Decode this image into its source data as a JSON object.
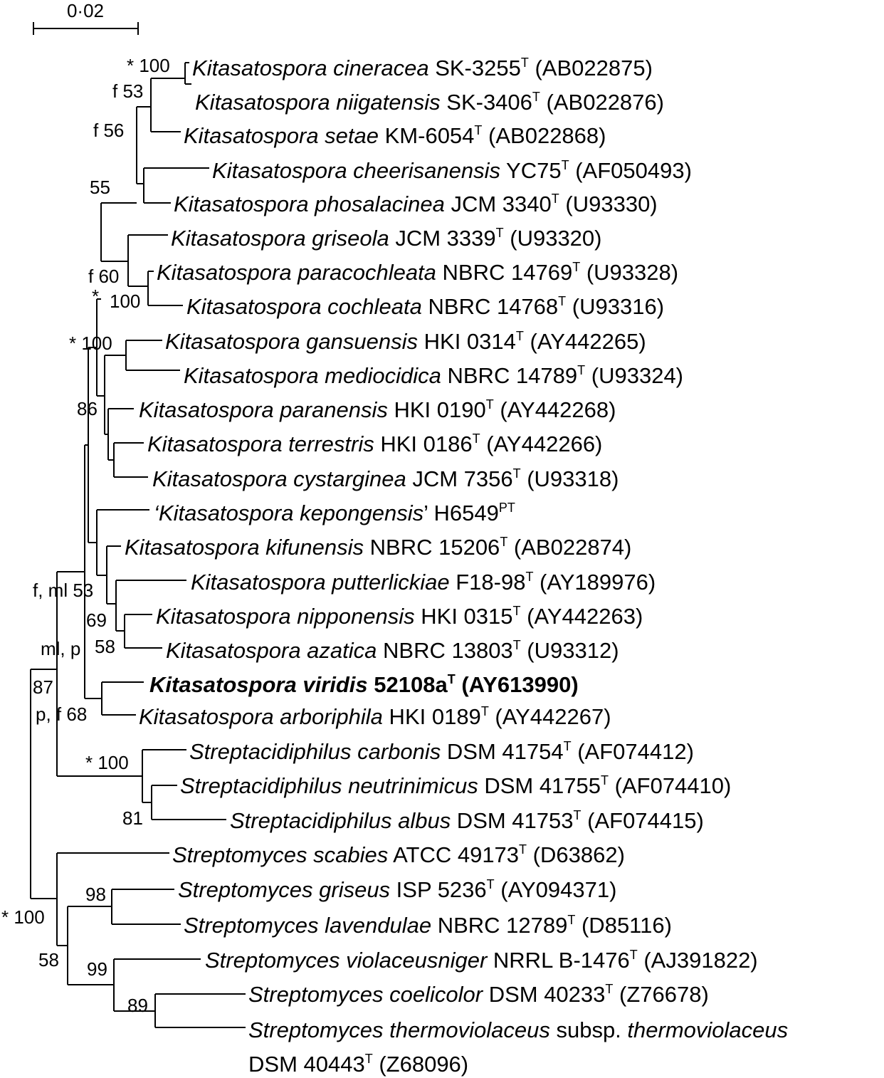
{
  "scale_bar": {
    "label": "0·02"
  },
  "colors": {
    "ink": "#000000",
    "background": "#ffffff"
  },
  "taxa": [
    {
      "id": "t1",
      "genus": "Kitasatospora",
      "species": "cineracea",
      "strain": "SK-3255",
      "sup": "T",
      "acc": "(AB022875)"
    },
    {
      "id": "t2",
      "genus": "Kitasatospora",
      "species": "niigatensis",
      "strain": "SK-3406",
      "sup": "T",
      "acc": "(AB022876)"
    },
    {
      "id": "t3",
      "genus": "Kitasatospora",
      "species": "setae",
      "strain": "KM-6054",
      "sup": "T",
      "acc": "(AB022868)"
    },
    {
      "id": "t4",
      "genus": "Kitasatospora",
      "species": "cheerisanensis",
      "strain": "YC75",
      "sup": "T",
      "acc": "(AF050493)"
    },
    {
      "id": "t5",
      "genus": "Kitasatospora",
      "species": "phosalacinea",
      "strain": "JCM 3340",
      "sup": "T",
      "acc": "(U93330)"
    },
    {
      "id": "t6",
      "genus": "Kitasatospora",
      "species": "griseola",
      "strain": "JCM 3339",
      "sup": "T",
      "acc": "(U93320)"
    },
    {
      "id": "t7",
      "genus": "Kitasatospora",
      "species": "paracochleata",
      "strain": "NBRC 14769",
      "sup": "T",
      "acc": "(U93328)"
    },
    {
      "id": "t8",
      "genus": "Kitasatospora",
      "species": "cochleata",
      "strain": "NBRC 14768",
      "sup": "T",
      "acc": "(U93316)"
    },
    {
      "id": "t9",
      "genus": "Kitasatospora",
      "species": "gansuensis",
      "strain": "HKI 0314",
      "sup": "T",
      "acc": "(AY442265)"
    },
    {
      "id": "t10",
      "genus": "Kitasatospora",
      "species": "mediocidica",
      "strain": "NBRC 14789",
      "sup": "T",
      "acc": "(U93324)"
    },
    {
      "id": "t11",
      "genus": "Kitasatospora",
      "species": "paranensis",
      "strain": "HKI 0190",
      "sup": "T",
      "acc": "(AY442268)"
    },
    {
      "id": "t12",
      "genus": "Kitasatospora",
      "species": "terrestris",
      "strain": "HKI 0186",
      "sup": "T",
      "acc": "(AY442266)"
    },
    {
      "id": "t13",
      "genus": "Kitasatospora",
      "species": "cystarginea",
      "strain": "JCM 7356",
      "sup": "T",
      "acc": "(U93318)"
    },
    {
      "id": "t14",
      "genus": "‘Kitasatospora",
      "species": "kepongensis",
      "suffix": "’",
      "strain": "H6549",
      "sup": "PT",
      "acc": ""
    },
    {
      "id": "t15",
      "genus": "Kitasatospora",
      "species": "kifunensis",
      "strain": "NBRC 15206",
      "sup": "T",
      "acc": "(AB022874)"
    },
    {
      "id": "t16",
      "genus": "Kitasatospora",
      "species": "putterlickiae",
      "strain": "F18-98",
      "sup": "T",
      "acc": "(AY189976)"
    },
    {
      "id": "t17",
      "genus": "Kitasatospora",
      "species": "nipponensis",
      "strain": "HKI 0315",
      "sup": "T",
      "acc": "(AY442263)"
    },
    {
      "id": "t18",
      "genus": "Kitasatospora",
      "species": "azatica",
      "strain": "NBRC 13803",
      "sup": "T",
      "acc": "(U93312)"
    },
    {
      "id": "t19",
      "genus": "Kitasatospora",
      "species": "viridis",
      "strain": "52108a",
      "sup": "T",
      "acc": "(AY613990)",
      "bold": true
    },
    {
      "id": "t20",
      "genus": "Kitasatospora",
      "species": "arboriphila",
      "strain": "HKI 0189",
      "sup": "T",
      "acc": "(AY442267)"
    },
    {
      "id": "t21",
      "genus": "Streptacidiphilus",
      "species": "carbonis",
      "strain": "DSM 41754",
      "sup": "T",
      "acc": "(AF074412)"
    },
    {
      "id": "t22",
      "genus": "Streptacidiphilus",
      "species": "neutrinimicus",
      "strain": "DSM 41755",
      "sup": "T",
      "acc": "(AF074410)"
    },
    {
      "id": "t23",
      "genus": "Streptacidiphilus",
      "species": "albus",
      "strain": "DSM 41753",
      "sup": "T",
      "acc": "(AF074415)"
    },
    {
      "id": "t24",
      "genus": "Streptomyces",
      "species": "scabies",
      "strain": "ATCC 49173",
      "sup": "T",
      "acc": "(D63862)"
    },
    {
      "id": "t25",
      "genus": "Streptomyces",
      "species": "griseus",
      "strain": "ISP 5236",
      "sup": "T",
      "acc": "(AY094371)"
    },
    {
      "id": "t26",
      "genus": "Streptomyces",
      "species": "lavendulae",
      "strain": "NBRC 12789",
      "sup": "T",
      "acc": "(D85116)"
    },
    {
      "id": "t27",
      "genus": "Streptomyces",
      "species": "violaceusniger",
      "strain": "NRRL B-1476",
      "sup": "T",
      "acc": "(AJ391822)"
    },
    {
      "id": "t28",
      "genus": "Streptomyces",
      "species": "coelicolor",
      "strain": "DSM 40233",
      "sup": "T",
      "acc": "(Z76678)"
    },
    {
      "id": "t29",
      "genus": "Streptomyces",
      "species": "thermoviolaceus",
      "subsp_word": "subsp.",
      "subsp": "thermoviolaceus",
      "strain": "DSM 40443",
      "sup": "T",
      "acc": "(Z68096)"
    }
  ],
  "node_labels": [
    {
      "id": "n1",
      "text": "* 100"
    },
    {
      "id": "n2",
      "text": "f 53"
    },
    {
      "id": "n3",
      "text": "f 56"
    },
    {
      "id": "n4",
      "text": "55"
    },
    {
      "id": "n5",
      "text": "f 60"
    },
    {
      "id": "n6",
      "text": "*"
    },
    {
      "id": "n7",
      "text": "100"
    },
    {
      "id": "n8",
      "text": "* 100"
    },
    {
      "id": "n9",
      "text": "86"
    },
    {
      "id": "n10",
      "text": "f, ml 53"
    },
    {
      "id": "n11",
      "text": "69"
    },
    {
      "id": "n12",
      "text": "ml, p"
    },
    {
      "id": "n13",
      "text": "58"
    },
    {
      "id": "n14",
      "text": "87"
    },
    {
      "id": "n15",
      "text": "p, f 68"
    },
    {
      "id": "n16",
      "text": "* 100"
    },
    {
      "id": "n17",
      "text": "81"
    },
    {
      "id": "n18",
      "text": "98"
    },
    {
      "id": "n19",
      "text": "* 100"
    },
    {
      "id": "n20",
      "text": "58"
    },
    {
      "id": "n21",
      "text": "99"
    },
    {
      "id": "n22",
      "text": "89"
    }
  ]
}
